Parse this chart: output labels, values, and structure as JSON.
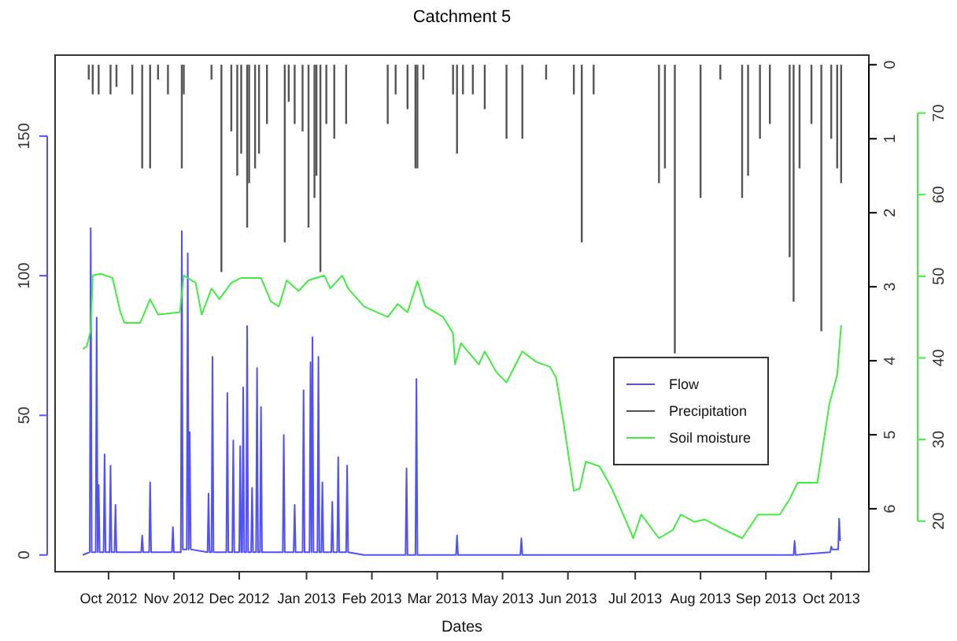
{
  "chart_data": {
    "type": "line",
    "title": "Catchment  5",
    "xlabel": "Dates",
    "xlim": [
      "2012-09-18",
      "2013-11-03"
    ],
    "xticks": [
      {
        "value": "2012-10-15",
        "label": "Oct 2012"
      },
      {
        "value": "2012-11-17",
        "label": "Nov 2012"
      },
      {
        "value": "2012-12-20",
        "label": "Dec 2012"
      },
      {
        "value": "2013-01-23",
        "label": "Jan 2013"
      },
      {
        "value": "2013-02-25",
        "label": "Feb 2013"
      },
      {
        "value": "2013-03-30",
        "label": "Mar 2013"
      },
      {
        "value": "2013-05-02",
        "label": "May 2013"
      },
      {
        "value": "2013-06-04",
        "label": "Jun 2013"
      },
      {
        "value": "2013-07-08",
        "label": "Jul 2013"
      },
      {
        "value": "2013-08-10",
        "label": "Aug 2013"
      },
      {
        "value": "2013-09-12",
        "label": "Sep 2013"
      },
      {
        "value": "2013-10-15",
        "label": "Oct 2013"
      }
    ],
    "ylim": [
      -6,
      179
    ],
    "yticks": [
      0,
      50,
      100,
      150
    ],
    "y2lim": [
      6.85,
      -0.13
    ],
    "y2ticks": [
      0,
      1,
      2,
      3,
      4,
      5,
      6
    ],
    "y3lim": [
      13.8,
      77.1
    ],
    "y3ticks": [
      20,
      30,
      40,
      50,
      60,
      70
    ],
    "legend": "right",
    "series": [
      {
        "name": "Flow",
        "axis": "y",
        "color": "#5050ff",
        "x": [
          "2012-10-02",
          "2012-10-05T12:00",
          "2012-10-06",
          "2012-10-06T12:00",
          "2012-10-08T12:00",
          "2012-10-09",
          "2012-10-09T12:00",
          "2012-10-09T12:00",
          "2012-10-10",
          "2012-10-10T12:00",
          "2012-10-12T12:00",
          "2012-10-13",
          "2012-10-13T12:00",
          "2012-10-15T12:00",
          "2012-10-16",
          "2012-10-16T12:00",
          "2012-10-18",
          "2012-10-18T12:00",
          "2012-10-19",
          "2012-10-31T12:00",
          "2012-11-01",
          "2012-11-01T12:00",
          "2012-11-04T12:00",
          "2012-11-05",
          "2012-11-05T12:00",
          "2012-11-16",
          "2012-11-16T12:00",
          "2012-11-17",
          "2012-11-20T12:00",
          "2012-11-21",
          "2012-11-21T12:00",
          "2012-11-23T12:00",
          "2012-11-24",
          "2012-11-24T12:00",
          "2012-11-24T12:00",
          "2012-11-25",
          "2012-11-25T12:00",
          "2012-12-04",
          "2012-12-04T12:00",
          "2012-12-05",
          "2012-12-06",
          "2012-12-06T12:00",
          "2012-12-07",
          "2012-12-13T12:00",
          "2012-12-14",
          "2012-12-14T12:00",
          "2012-12-16T12:00",
          "2012-12-17",
          "2012-12-17T12:00",
          "2012-12-20",
          "2012-12-20T12:00",
          "2012-12-21",
          "2012-12-21T12:00",
          "2012-12-22",
          "2012-12-22T12:00",
          "2012-12-23T12:00",
          "2012-12-24",
          "2012-12-24T12:00",
          "2012-12-26",
          "2012-12-26T12:00",
          "2012-12-27",
          "2012-12-28T12:00",
          "2012-12-29",
          "2012-12-29T12:00",
          "2012-12-30T12:00",
          "2012-12-31",
          "2012-12-31T12:00",
          "2013-01-11",
          "2013-01-11T12:00",
          "2013-01-12",
          "2013-01-16T12:00",
          "2013-01-17",
          "2013-01-17T12:00",
          "2013-01-21",
          "2013-01-21T12:00",
          "2013-01-22",
          "2013-01-24T12:00",
          "2013-01-25",
          "2013-01-25T12:00",
          "2013-01-25T12:00",
          "2013-01-26",
          "2013-01-26T12:00",
          "2013-01-28T12:00",
          "2013-01-29",
          "2013-01-29T12:00",
          "2013-01-30T12:00",
          "2013-01-31",
          "2013-01-31T12:00",
          "2013-02-04T12:00",
          "2013-02-05",
          "2013-02-05T12:00",
          "2013-02-07T12:00",
          "2013-02-08",
          "2013-02-08T12:00",
          "2013-02-12",
          "2013-02-12T12:00",
          "2013-02-13",
          "2013-02-21",
          "2013-03-14",
          "2013-03-14T12:00",
          "2013-03-15",
          "2013-03-19",
          "2013-03-19T12:00",
          "2013-03-20",
          "2013-04-08T12:00",
          "2013-04-09",
          "2013-04-09T12:00",
          "2013-05-11",
          "2013-05-11T12:00",
          "2013-05-12",
          "2013-09-26",
          "2013-09-26T12:00",
          "2013-09-27",
          "2013-10-14T12:00",
          "2013-10-15",
          "2013-10-15T12:00",
          "2013-10-18T12:00",
          "2013-10-19",
          "2013-10-19T12:00"
        ],
        "values": [
          0,
          1,
          117,
          1,
          1,
          85,
          1,
          1,
          25,
          1,
          1,
          36,
          1,
          1,
          32,
          1,
          1,
          18,
          1,
          1,
          7,
          1,
          1,
          26,
          1,
          1,
          10,
          1,
          1,
          116,
          2,
          2,
          108,
          2,
          2,
          44,
          2,
          1,
          22,
          1,
          1,
          71,
          1,
          1,
          58,
          1,
          1,
          41,
          1,
          1,
          39,
          1,
          1,
          60,
          1,
          1,
          82,
          1,
          1,
          24,
          1,
          1,
          67,
          1,
          1,
          53,
          1,
          1,
          43,
          1,
          1,
          18,
          1,
          1,
          59,
          1,
          1,
          69,
          1,
          1,
          78,
          1,
          1,
          71,
          1,
          1,
          26,
          1,
          1,
          19,
          1,
          1,
          35,
          1,
          1,
          32,
          1,
          0,
          0,
          31,
          0,
          0,
          63,
          0,
          0,
          7,
          0,
          0,
          6,
          0,
          0,
          5,
          0,
          1,
          3,
          2,
          2,
          13,
          5
        ]
      },
      {
        "name": "Precipitation",
        "type": "bar",
        "axis": "y2",
        "color": "#555555",
        "x": [
          "2012-10-05",
          "2012-10-07",
          "2012-10-10",
          "2012-10-16",
          "2012-10-19",
          "2012-10-27",
          "2012-11-01",
          "2012-11-05",
          "2012-11-09",
          "2012-11-14",
          "2012-11-21",
          "2012-11-22",
          "2012-12-06",
          "2012-12-11",
          "2012-12-16",
          "2012-12-19",
          "2012-12-21",
          "2012-12-24",
          "2012-12-25",
          "2012-12-28",
          "2012-12-30",
          "2013-01-03",
          "2013-01-12",
          "2013-01-14",
          "2013-01-17",
          "2013-01-21",
          "2013-01-24",
          "2013-01-27",
          "2013-01-28",
          "2013-01-30",
          "2013-02-02",
          "2013-02-06",
          "2013-02-12",
          "2013-03-05",
          "2013-03-09",
          "2013-03-15",
          "2013-03-19",
          "2013-03-20",
          "2013-03-23",
          "2013-04-07",
          "2013-04-09",
          "2013-04-12",
          "2013-04-17",
          "2013-04-23",
          "2013-05-04",
          "2013-05-12",
          "2013-05-24",
          "2013-06-07",
          "2013-06-11",
          "2013-06-17",
          "2013-07-20",
          "2013-07-23",
          "2013-07-28",
          "2013-08-10",
          "2013-08-20",
          "2013-08-31",
          "2013-09-03",
          "2013-09-09",
          "2013-09-14",
          "2013-09-24",
          "2013-09-26",
          "2013-09-29",
          "2013-10-05",
          "2013-10-10",
          "2013-10-15",
          "2013-10-18",
          "2013-10-20"
        ],
        "values": [
          0.2,
          0.4,
          0.4,
          0.4,
          0.3,
          0.4,
          1.4,
          1.4,
          0.2,
          0.4,
          1.4,
          0.4,
          0.2,
          2.8,
          0.9,
          1.5,
          1.2,
          2.2,
          1.6,
          1.4,
          1.2,
          0.8,
          2.4,
          0.5,
          0.8,
          0.9,
          2.2,
          1.8,
          1.5,
          2.8,
          0.8,
          1.0,
          0.8,
          0.8,
          0.4,
          0.6,
          1.4,
          1.4,
          0.2,
          0.4,
          1.2,
          0.4,
          0.4,
          0.6,
          1.0,
          1.0,
          0.2,
          0.4,
          2.4,
          0.4,
          1.6,
          1.4,
          3.9,
          1.8,
          0.2,
          1.8,
          1.5,
          1.0,
          0.8,
          2.6,
          3.2,
          1.4,
          0.8,
          3.6,
          1.0,
          1.4,
          1.6
        ]
      },
      {
        "name": "Soil moisture",
        "axis": "y3",
        "color": "#40ee40",
        "x": [
          "2012-10-02",
          "2012-10-04",
          "2012-10-06",
          "2012-10-07",
          "2012-10-11",
          "2012-10-17",
          "2012-10-21",
          "2012-10-23",
          "2012-10-31",
          "2012-11-05",
          "2012-11-09",
          "2012-11-20",
          "2012-11-22",
          "2012-11-28",
          "2012-12-01",
          "2012-12-06",
          "2012-12-10",
          "2012-12-16",
          "2012-12-21",
          "2012-12-31",
          "2013-01-05",
          "2013-01-09",
          "2013-01-13",
          "2013-01-19",
          "2013-01-24",
          "2013-02-01",
          "2013-02-04",
          "2013-02-10",
          "2013-02-13",
          "2013-02-21",
          "2013-03-05",
          "2013-03-10",
          "2013-03-15",
          "2013-03-20",
          "2013-03-24",
          "2013-04-02",
          "2013-04-07",
          "2013-04-08",
          "2013-04-11",
          "2013-04-20",
          "2013-04-23",
          "2013-04-29",
          "2013-05-04",
          "2013-05-12",
          "2013-05-19",
          "2013-05-26",
          "2013-05-29",
          "2013-06-02",
          "2013-06-07",
          "2013-06-10",
          "2013-06-13",
          "2013-06-20",
          "2013-06-26",
          "2013-07-03",
          "2013-07-07",
          "2013-07-11",
          "2013-07-20",
          "2013-07-27",
          "2013-07-31",
          "2013-08-07",
          "2013-08-12",
          "2013-08-20",
          "2013-08-31",
          "2013-09-08",
          "2013-09-19",
          "2013-09-24",
          "2013-09-28",
          "2013-10-08",
          "2013-10-10",
          "2013-10-14",
          "2013-10-18",
          "2013-10-20"
        ],
        "values": [
          41.1,
          41.4,
          43.4,
          50.1,
          50.3,
          49.8,
          45.6,
          44.3,
          44.3,
          47.2,
          45.3,
          45.6,
          50.1,
          49.2,
          45.3,
          48.5,
          47.2,
          49.2,
          49.8,
          49.8,
          46.9,
          46.3,
          49.5,
          48.2,
          49.5,
          50.1,
          48.5,
          50.1,
          48.5,
          46.3,
          45.0,
          46.6,
          45.6,
          49.4,
          46.3,
          45.0,
          43.0,
          39.2,
          41.8,
          39.2,
          40.8,
          38.2,
          37.0,
          40.8,
          39.5,
          38.9,
          37.6,
          31.8,
          23.7,
          24.0,
          27.3,
          26.7,
          24.1,
          20.2,
          17.9,
          20.8,
          17.9,
          18.9,
          20.8,
          19.9,
          20.2,
          19.2,
          17.9,
          20.8,
          20.8,
          22.7,
          24.7,
          24.7,
          27.9,
          34.3,
          37.9,
          44.0
        ]
      }
    ]
  }
}
